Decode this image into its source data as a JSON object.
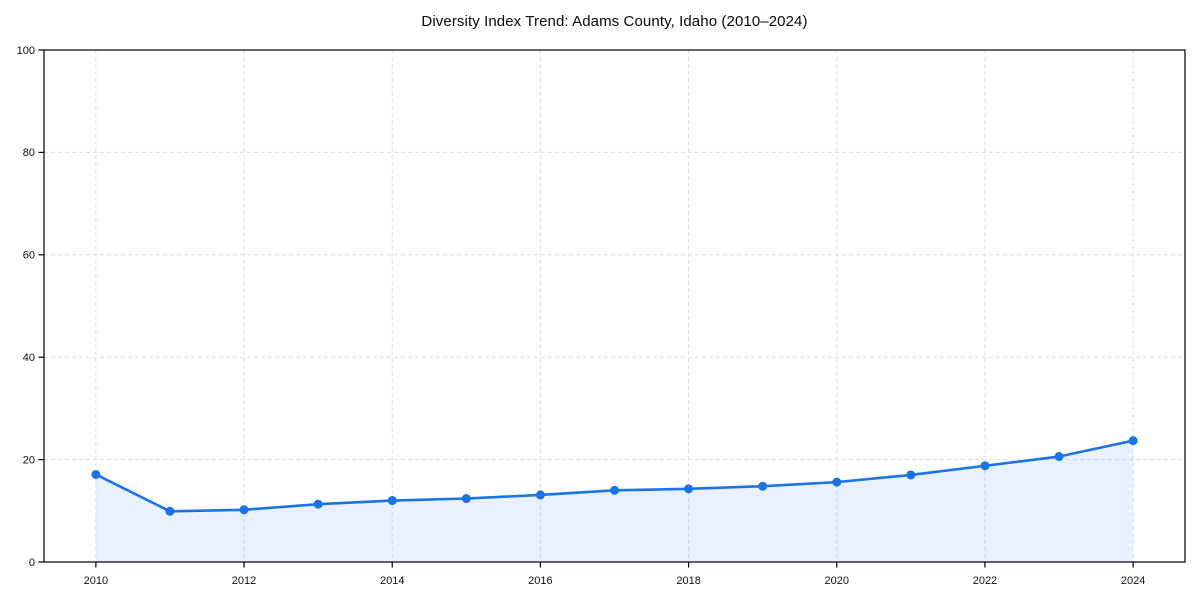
{
  "chart_data": {
    "type": "line",
    "title": "Diversity Index Trend: Adams County, Idaho (2010–2024)",
    "xlabel": "",
    "ylabel": "",
    "x": [
      2010,
      2011,
      2012,
      2013,
      2014,
      2015,
      2016,
      2017,
      2018,
      2019,
      2020,
      2021,
      2022,
      2023,
      2024
    ],
    "series": [
      {
        "name": "Diversity Index",
        "values": [
          17.1,
          9.9,
          10.2,
          11.3,
          12.0,
          12.4,
          13.1,
          14.0,
          14.3,
          14.8,
          15.6,
          17.0,
          18.8,
          20.6,
          23.7
        ]
      }
    ],
    "xlim": [
      2009.3,
      2024.7
    ],
    "ylim": [
      0,
      100
    ],
    "xticks": [
      2010,
      2012,
      2014,
      2016,
      2018,
      2020,
      2022,
      2024
    ],
    "yticks": [
      0,
      20,
      40,
      60,
      80,
      100
    ],
    "grid": true,
    "grid_style": "dashed",
    "legend": "none",
    "line_color": "#1a73e8",
    "marker_color": "#1a73e8",
    "fill_color": "rgba(26,115,232,0.10)",
    "grid_color": "#dedede",
    "spine_color": "#000000",
    "tick_label_color": "#111111"
  }
}
